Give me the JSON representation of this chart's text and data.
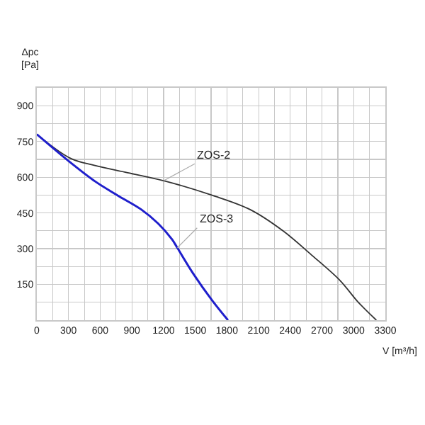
{
  "chart_data": {
    "type": "line",
    "xlabel": "V [m³/h]",
    "ylabel": "Δpc\n[Pa]",
    "xlim": [
      0,
      3300
    ],
    "xticks": [
      0,
      300,
      600,
      900,
      1200,
      1500,
      1800,
      2100,
      2400,
      2700,
      3000,
      3300
    ],
    "ylim": [
      0,
      975
    ],
    "yticks": [
      150,
      300,
      450,
      600,
      750,
      900
    ],
    "grid": true,
    "marker": "none",
    "line_style": "solid",
    "series": [
      {
        "color": "#333333",
        "x": [
          0,
          320,
          550,
          860,
          1220,
          1660,
          2020,
          2330,
          2600,
          2870,
          3040,
          3215
        ],
        "values": [
          780,
          679,
          649,
          619,
          583,
          524,
          464,
          375,
          274,
          167,
          77,
          0
        ]
      },
      {
        "color": "#1f1fcc",
        "x": [
          0,
          320,
          550,
          763,
          990,
          1150,
          1280,
          1330,
          1480,
          1660,
          1810
        ],
        "values": [
          780,
          661,
          583,
          524,
          464,
          405,
          339,
          304,
          196,
          83,
          0
        ]
      }
    ],
    "annotations": [
      {
        "text": "ZOS-2",
        "x": 1200,
        "y": 585
      },
      {
        "text": "ZOS-3",
        "x": 1330,
        "y": 304
      }
    ]
  }
}
